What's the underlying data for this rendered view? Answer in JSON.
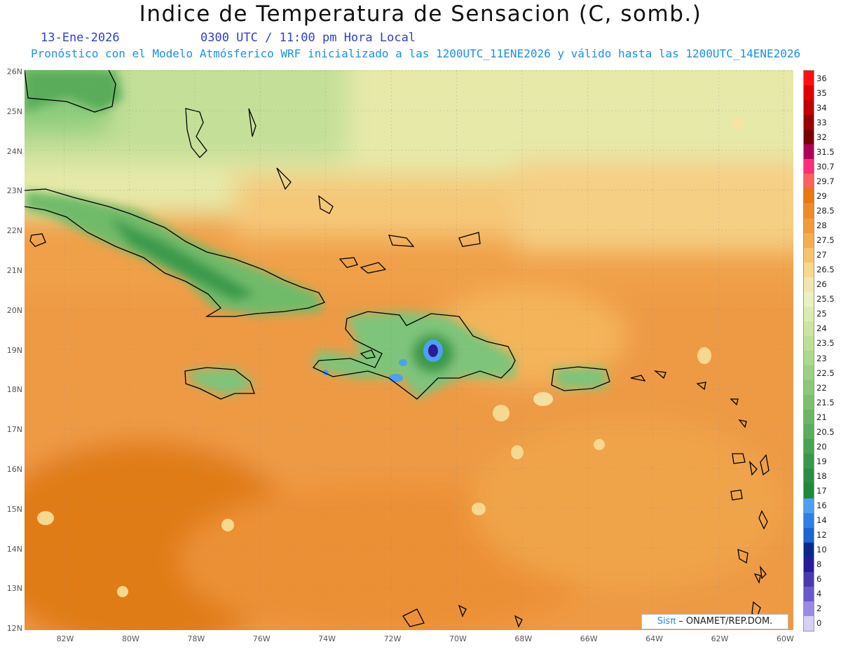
{
  "header": {
    "title": "Indice de Temperatura de Sensacion (C, somb.)",
    "date": "13-Ene-2026",
    "time": "0300 UTC / 11:00 pm Hora Local",
    "model_note": "Pronóstico con el Modelo Atmósferico WRF inicializado a las 1200UTC_11ENE2026 y válido hasta las  1200UTC_14ENE2026"
  },
  "map": {
    "lat_labels": [
      "26N",
      "25N",
      "24N",
      "23N",
      "22N",
      "21N",
      "20N",
      "19N",
      "18N",
      "17N",
      "16N",
      "15N",
      "14N",
      "13N",
      "12N"
    ],
    "lon_labels": [
      "82W",
      "80W",
      "78W",
      "76W",
      "74W",
      "72W",
      "70W",
      "68W",
      "66W",
      "64W",
      "62W",
      "60W"
    ]
  },
  "legend": {
    "labels": [
      "36",
      "35",
      "34",
      "33",
      "32",
      "31.5",
      "30.7",
      "29.7",
      "29",
      "28.5",
      "28",
      "27.5",
      "27",
      "26.5",
      "26",
      "25.5",
      "25",
      "24",
      "23.5",
      "23",
      "22.5",
      "22",
      "21.5",
      "21",
      "20.5",
      "20",
      "19",
      "18",
      "17",
      "16",
      "14",
      "12",
      "10",
      "8",
      "6",
      "4",
      "2",
      "0"
    ],
    "colors": [
      "#ff1010",
      "#e00000",
      "#c00000",
      "#9a0000",
      "#7a0000",
      "#b0005a",
      "#ff2d7a",
      "#ff6060",
      "#e87810",
      "#ed8a2a",
      "#f09a3c",
      "#f4ae50",
      "#f7c46e",
      "#f6d98a",
      "#f2e6b0",
      "#eaf0c0",
      "#dcecb0",
      "#cde5a0",
      "#bde095",
      "#acd98a",
      "#9bd180",
      "#8cc976",
      "#7bc06c",
      "#6ab663",
      "#5aad5b",
      "#48a452",
      "#38994a",
      "#2a8e42",
      "#1f8a3c",
      "#4f9ff0",
      "#2e80e6",
      "#1866cf",
      "#0a2a8a",
      "#2a1a9a",
      "#4a3ab0",
      "#6a5ac8",
      "#9a8ae4",
      "#d6d0f6"
    ]
  },
  "credit": {
    "sis": "Sis",
    "pi": "π",
    "rest": " – ONAMET/REP.DOM."
  }
}
